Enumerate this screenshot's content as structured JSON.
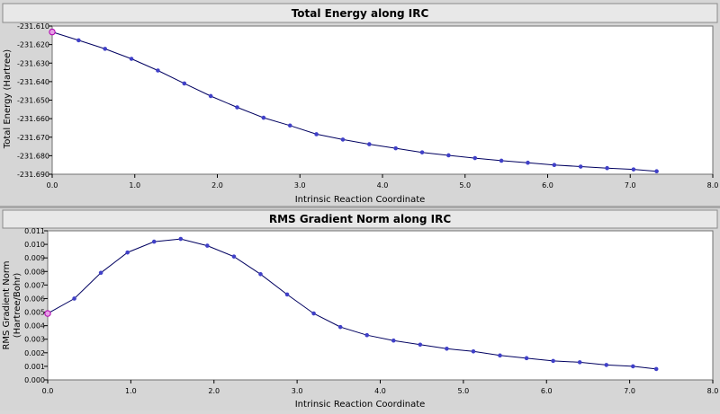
{
  "chart_data": [
    {
      "type": "line",
      "title": "Total Energy along IRC",
      "xlabel": "Intrinsic Reaction Coordinate",
      "ylabel": "Total Energy (Hartree)",
      "xlim": [
        0.0,
        8.0
      ],
      "ylim": [
        -231.69,
        -231.61
      ],
      "xticks": [
        "0.0",
        "1.0",
        "2.0",
        "3.0",
        "4.0",
        "5.0",
        "6.0",
        "7.0",
        "8.0"
      ],
      "yticks": [
        "-231.610",
        "-231.620",
        "-231.630",
        "-231.640",
        "-231.650",
        "-231.660",
        "-231.670",
        "-231.680",
        "-231.690"
      ],
      "grid": false,
      "line_color": "#000060",
      "marker_color": "#4040c8",
      "highlight_color": "#b000b0",
      "x": [
        0.0,
        0.32,
        0.64,
        0.96,
        1.28,
        1.6,
        1.92,
        2.24,
        2.56,
        2.88,
        3.2,
        3.52,
        3.84,
        4.16,
        4.48,
        4.8,
        5.12,
        5.44,
        5.76,
        6.08,
        6.4,
        6.72,
        7.04,
        7.32
      ],
      "y": [
        -231.6132,
        -231.6177,
        -231.6223,
        -231.6277,
        -231.634,
        -231.641,
        -231.6478,
        -231.6539,
        -231.6595,
        -231.6637,
        -231.6684,
        -231.6713,
        -231.6738,
        -231.676,
        -231.6782,
        -231.6798,
        -231.6813,
        -231.6827,
        -231.6838,
        -231.685,
        -231.6859,
        -231.6867,
        -231.6874,
        -231.6884
      ],
      "highlight_index": 0
    },
    {
      "type": "line",
      "title": "RMS Gradient Norm along IRC",
      "xlabel": "Intrinsic Reaction Coordinate",
      "ylabel": "RMS Gradient Norm",
      "ylabel2": "(Hartree/Bohr)",
      "xlim": [
        0.0,
        8.0
      ],
      "ylim": [
        0.0,
        0.011
      ],
      "xticks": [
        "0.0",
        "1.0",
        "2.0",
        "3.0",
        "4.0",
        "5.0",
        "6.0",
        "7.0",
        "8.0"
      ],
      "yticks": [
        "0.011",
        "0.010",
        "0.009",
        "0.008",
        "0.007",
        "0.006",
        "0.005",
        "0.004",
        "0.003",
        "0.002",
        "0.001",
        "0.000"
      ],
      "grid": false,
      "line_color": "#000060",
      "marker_color": "#4040c8",
      "highlight_color": "#b000b0",
      "x": [
        0.0,
        0.32,
        0.64,
        0.96,
        1.28,
        1.6,
        1.92,
        2.24,
        2.56,
        2.88,
        3.2,
        3.52,
        3.84,
        4.16,
        4.48,
        4.8,
        5.12,
        5.44,
        5.76,
        6.08,
        6.4,
        6.72,
        7.04,
        7.32
      ],
      "y": [
        0.0049,
        0.006,
        0.0079,
        0.0094,
        0.0102,
        0.0104,
        0.0099,
        0.0091,
        0.0078,
        0.0063,
        0.0049,
        0.0039,
        0.0033,
        0.0029,
        0.0026,
        0.0023,
        0.0021,
        0.0018,
        0.0016,
        0.0014,
        0.0013,
        0.0011,
        0.001,
        0.0008
      ],
      "highlight_index": 0
    }
  ]
}
